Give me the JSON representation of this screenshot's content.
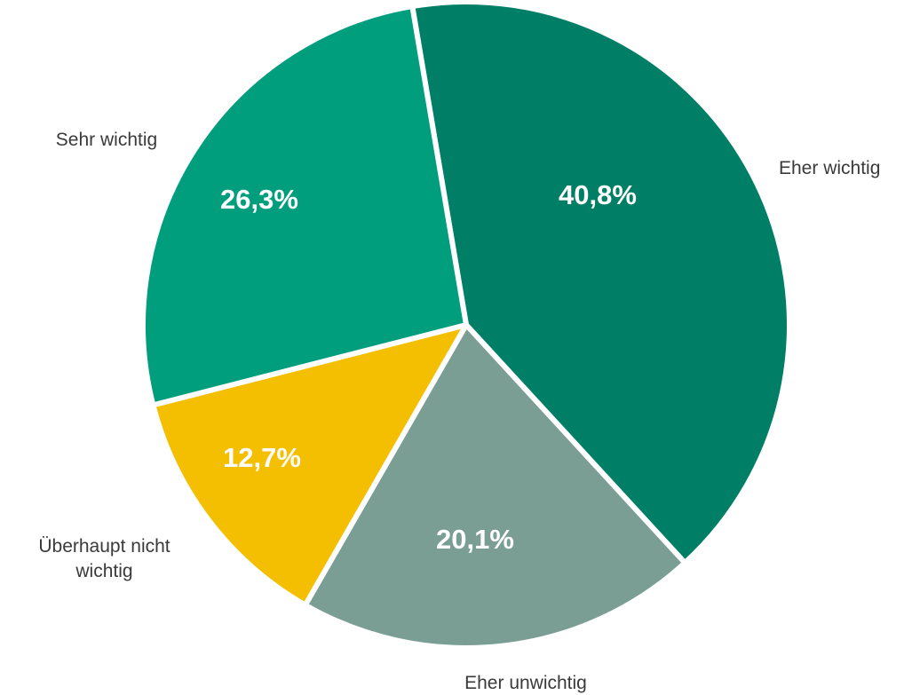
{
  "chart_data": {
    "type": "pie",
    "categories": [
      "Eher wichtig",
      "Eher unwichtig",
      "Überhaupt nicht wichtig",
      "Sehr wichtig"
    ],
    "values": [
      40.8,
      20.1,
      12.7,
      26.3
    ],
    "value_labels": [
      "40,8%",
      "20,1%",
      "12,7%",
      "26,3%"
    ],
    "colors": [
      "#007f66",
      "#7a9e94",
      "#f4bf00",
      "#009e7c"
    ]
  }
}
